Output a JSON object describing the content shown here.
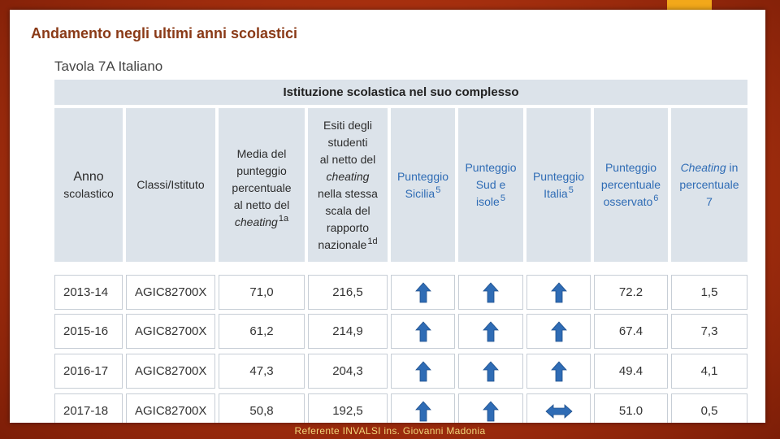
{
  "slide": {
    "title": "Andamento negli ultimi anni scolastici"
  },
  "table": {
    "caption": "Tavola 7A Italiano",
    "group_header": "Istituzione scolastica nel suo complesso",
    "columns": {
      "anno": {
        "line1": "Anno",
        "line2": "scolastico"
      },
      "classi": {
        "line1": "Classi/Istituto"
      },
      "media": {
        "l1": "Media del",
        "l2": "punteggio",
        "l3": "percentuale",
        "l4": "al netto del",
        "l5": "cheating",
        "sup": "1a"
      },
      "esiti": {
        "l1": "Esiti degli",
        "l2": "studenti",
        "l3": "al netto del",
        "l4": "cheating",
        "l5": "nella stessa",
        "l6": "scala del",
        "l7": "rapporto",
        "l8": "nazionale",
        "sup": "1d"
      },
      "sicilia": {
        "l1": "Punteggio",
        "l2": "Sicilia",
        "sup": "5"
      },
      "sud": {
        "l1": "Punteggio",
        "l2": "Sud e",
        "l3": "isole",
        "sup": "5"
      },
      "italia": {
        "l1": "Punteggio",
        "l2": "Italia",
        "sup": "5"
      },
      "osservato": {
        "l1": "Punteggio",
        "l2": "percentuale",
        "l3": "osservato",
        "sup": "6"
      },
      "cheating": {
        "l1a": "Cheating",
        "l1b": "in",
        "l2": "percentuale",
        "l3": "7"
      }
    },
    "rows": [
      {
        "anno": "2013-14",
        "classi": "AGIC82700X",
        "media": "71,0",
        "esiti": "216,5",
        "sicilia": "up-arrow-icon",
        "sud": "up-arrow-icon",
        "italia": "up-arrow-icon",
        "osservato": "72.2",
        "cheating": "1,5"
      },
      {
        "anno": "2015-16",
        "classi": "AGIC82700X",
        "media": "61,2",
        "esiti": "214,9",
        "sicilia": "up-arrow-icon",
        "sud": "up-arrow-icon",
        "italia": "up-arrow-icon",
        "osservato": "67.4",
        "cheating": "7,3"
      },
      {
        "anno": "2016-17",
        "classi": "AGIC82700X",
        "media": "47,3",
        "esiti": "204,3",
        "sicilia": "up-arrow-icon",
        "sud": "up-arrow-icon",
        "italia": "up-arrow-icon",
        "osservato": "49.4",
        "cheating": "4,1"
      },
      {
        "anno": "2017-18",
        "classi": "AGIC82700X",
        "media": "50,8",
        "esiti": "192,5",
        "sicilia": "up-arrow-icon",
        "sud": "up-arrow-icon",
        "italia": "double-arrow-icon",
        "osservato": "51.0",
        "cheating": "0,5"
      }
    ]
  },
  "colors": {
    "arrow": "#2f6cb5",
    "header_bg": "#dce3ea",
    "title": "#8a3a17",
    "footer": "#f0d57a"
  },
  "footer": {
    "text": "Referente INVALSI ins. Giovanni Madonia"
  }
}
